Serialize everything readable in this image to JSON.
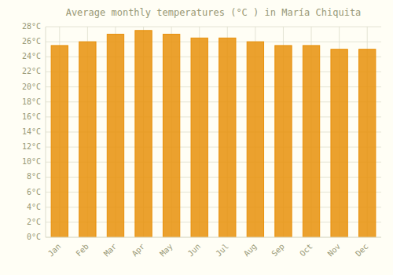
{
  "chart_data": {
    "type": "bar",
    "title": "Average monthly temperatures (°C ) in María Chiquita",
    "categories": [
      "Jan",
      "Feb",
      "Mar",
      "Apr",
      "May",
      "Jun",
      "Jul",
      "Aug",
      "Sep",
      "Oct",
      "Nov",
      "Dec"
    ],
    "values": [
      25.5,
      26.0,
      27.0,
      27.5,
      27.0,
      26.5,
      26.5,
      26.0,
      25.5,
      25.5,
      25.0,
      25.0
    ],
    "color": "#E8900A",
    "ylim": [
      0,
      28
    ],
    "yticks": [
      {
        "value": 0,
        "label": "0°C"
      },
      {
        "value": 2,
        "label": "2°C"
      },
      {
        "value": 4,
        "label": "4°C"
      },
      {
        "value": 6,
        "label": "6°C"
      },
      {
        "value": 8,
        "label": "8°C"
      },
      {
        "value": 10,
        "label": "10°C"
      },
      {
        "value": 12,
        "label": "12°C"
      },
      {
        "value": 14,
        "label": "14°C"
      },
      {
        "value": 16,
        "label": "16°C"
      },
      {
        "value": 18,
        "label": "18°C"
      },
      {
        "value": 20,
        "label": "20°C"
      },
      {
        "value": 22,
        "label": "22°C"
      },
      {
        "value": 24,
        "label": "24°C"
      },
      {
        "value": 26,
        "label": "26°C"
      },
      {
        "value": 28,
        "label": "28°C"
      }
    ],
    "grid": true
  }
}
